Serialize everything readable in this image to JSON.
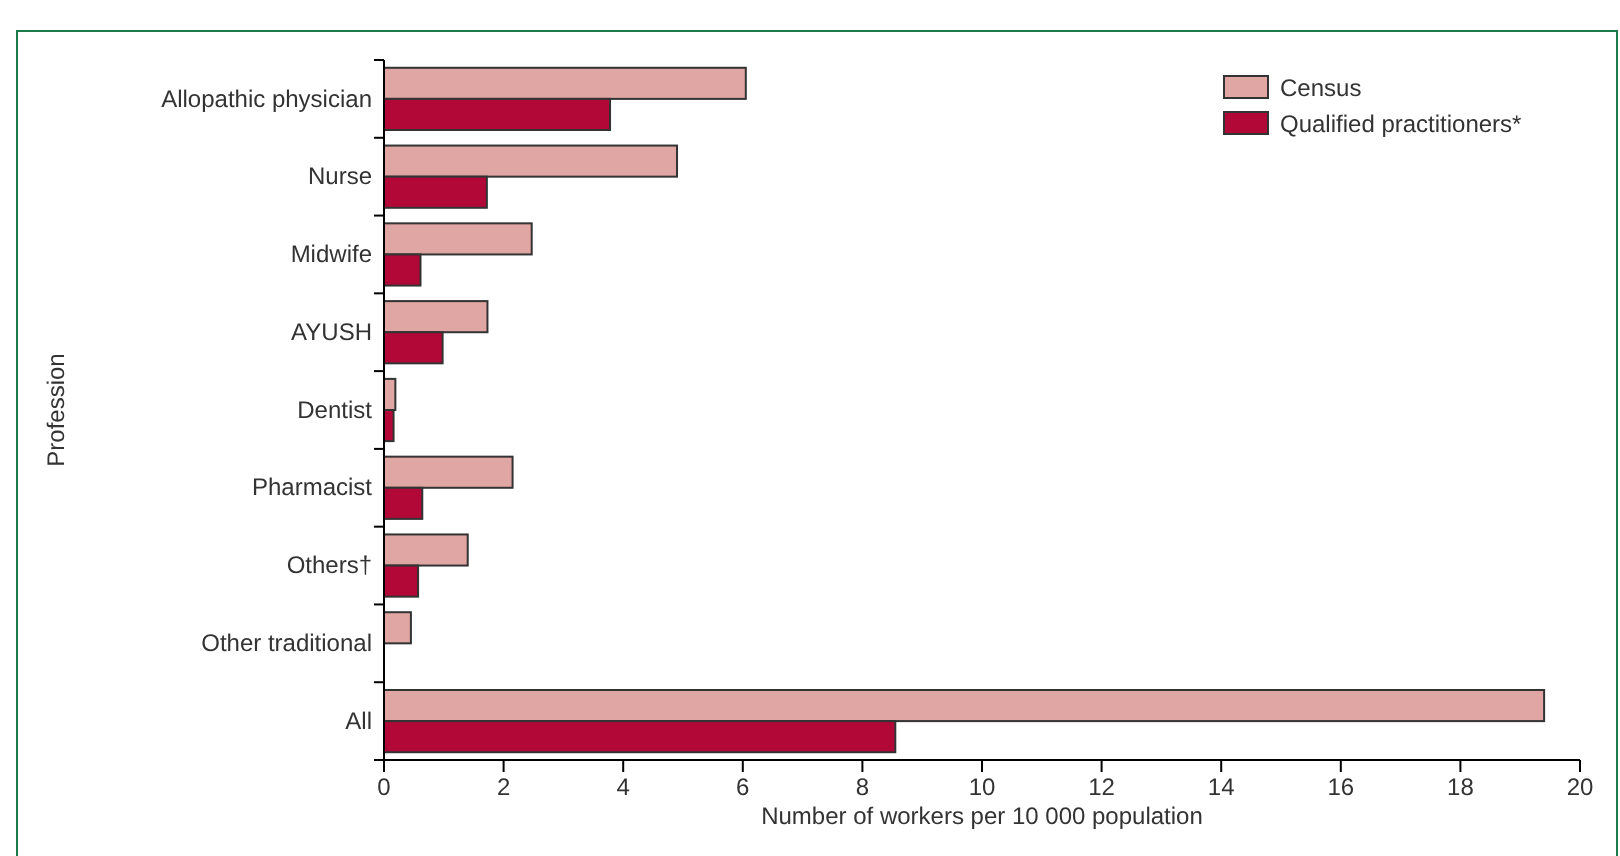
{
  "chart_data": {
    "type": "bar",
    "orientation": "horizontal",
    "categories": [
      "Allopathic physician",
      "Nurse",
      "Midwife",
      "AYUSH",
      "Dentist",
      "Pharmacist",
      "Others†",
      "Other traditional",
      "All"
    ],
    "series": [
      {
        "name": "Census",
        "color": "#e0a6a3",
        "values": [
          6.05,
          4.9,
          2.47,
          1.73,
          0.19,
          2.15,
          1.4,
          0.45,
          19.4
        ]
      },
      {
        "name": "Qualified practitioners*",
        "color": "#b20838",
        "values": [
          3.78,
          1.72,
          0.61,
          0.98,
          0.16,
          0.64,
          0.57,
          null,
          8.55
        ]
      }
    ],
    "xlim": [
      0,
      20
    ],
    "xticks": [
      0,
      2,
      4,
      6,
      8,
      10,
      12,
      14,
      16,
      18,
      20
    ],
    "xlabel": "Number of workers per 10 000 population",
    "ylabel": "Profession",
    "legend": "top right",
    "grid": false
  }
}
